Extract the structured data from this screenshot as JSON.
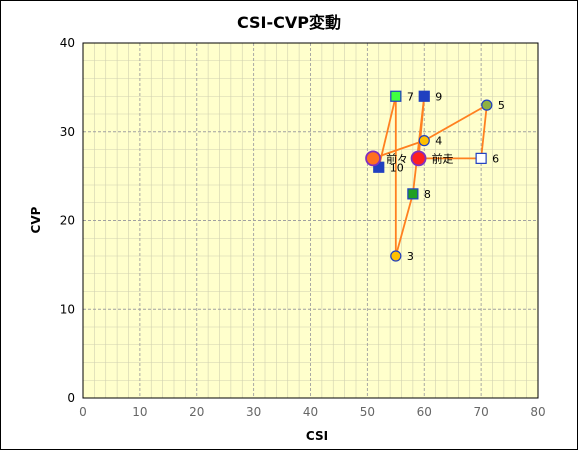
{
  "chart_data": {
    "type": "scatter",
    "title": "CSI-CVP変動",
    "xlabel": "CSI",
    "ylabel": "CVP",
    "xlim": [
      0,
      80
    ],
    "ylim": [
      0,
      40
    ],
    "xticks": [
      0,
      10,
      20,
      30,
      40,
      50,
      60,
      70,
      80
    ],
    "yticks": [
      0,
      10,
      20,
      30,
      40
    ],
    "grid": true,
    "colors": {
      "plot_bg": "#ffffcc",
      "line": "#ff8020",
      "major_grid": "#a0a0a0",
      "minor_grid": "#d0d0b0"
    },
    "path_order": [
      "前々",
      "10",
      "7",
      "3",
      "8",
      "9",
      "前走",
      "6",
      "5",
      "4",
      "前々"
    ],
    "points": [
      {
        "label": "3",
        "x": 55,
        "y": 16,
        "marker": "circle",
        "fill": "#ffc000",
        "stroke": "#2040c0"
      },
      {
        "label": "4",
        "x": 60,
        "y": 29,
        "marker": "circle",
        "fill": "#ffc000",
        "stroke": "#2040c0"
      },
      {
        "label": "5",
        "x": 71,
        "y": 33,
        "marker": "circle",
        "fill": "#90b040",
        "stroke": "#2040c0"
      },
      {
        "label": "6",
        "x": 70,
        "y": 27,
        "marker": "square",
        "fill": "#ffffff",
        "stroke": "#2040c0"
      },
      {
        "label": "7",
        "x": 55,
        "y": 34,
        "marker": "square",
        "fill": "#40ff40",
        "stroke": "#2040c0"
      },
      {
        "label": "8",
        "x": 58,
        "y": 23,
        "marker": "square",
        "fill": "#20a020",
        "stroke": "#2040c0"
      },
      {
        "label": "9",
        "x": 60,
        "y": 34,
        "marker": "square",
        "fill": "#2040c0",
        "stroke": "#2040c0"
      },
      {
        "label": "10",
        "x": 52,
        "y": 26,
        "marker": "square",
        "fill": "#2040c0",
        "stroke": "#2040c0"
      },
      {
        "label": "前々",
        "x": 51,
        "y": 27,
        "marker": "big-circle",
        "fill": "#ff7020",
        "stroke": "#8030c0"
      },
      {
        "label": "前走",
        "x": 59,
        "y": 27,
        "marker": "big-circle",
        "fill": "#ff2020",
        "stroke": "#8030c0"
      }
    ]
  }
}
